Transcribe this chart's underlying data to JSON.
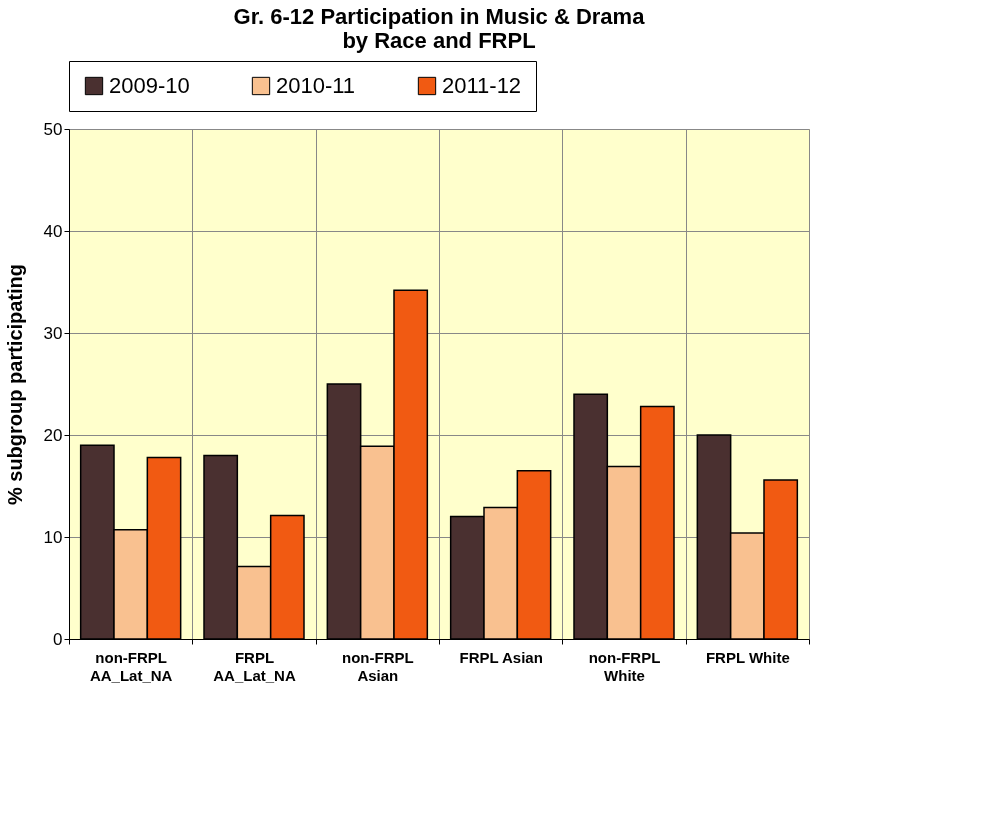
{
  "chart_data": {
    "type": "bar",
    "title": [
      "Gr. 6-12 Participation in Music & Drama",
      "by Race and FRPL"
    ],
    "ylabel": "% subgroup participating",
    "categories": [
      "non-FRPL AA_Lat_NA",
      "FRPL AA_Lat_NA",
      "non-FRPL Asian",
      "FRPL Asian",
      "non-FRPL White",
      "FRPL White"
    ],
    "series": [
      {
        "name": "2009-10",
        "color": "#4a3030",
        "values": [
          19,
          18,
          25,
          12,
          24,
          20
        ]
      },
      {
        "name": "2010-11",
        "color": "#f9c190",
        "values": [
          10.7,
          7.1,
          18.9,
          12.9,
          16.9,
          10.4
        ]
      },
      {
        "name": "2011-12",
        "color": "#f15a12",
        "values": [
          17.8,
          12.1,
          34.2,
          16.5,
          22.8,
          15.6
        ]
      }
    ],
    "ylim": [
      0,
      50
    ],
    "yticks": [
      0,
      10,
      20,
      30,
      40,
      50
    ],
    "grid": true,
    "legend": "top"
  }
}
